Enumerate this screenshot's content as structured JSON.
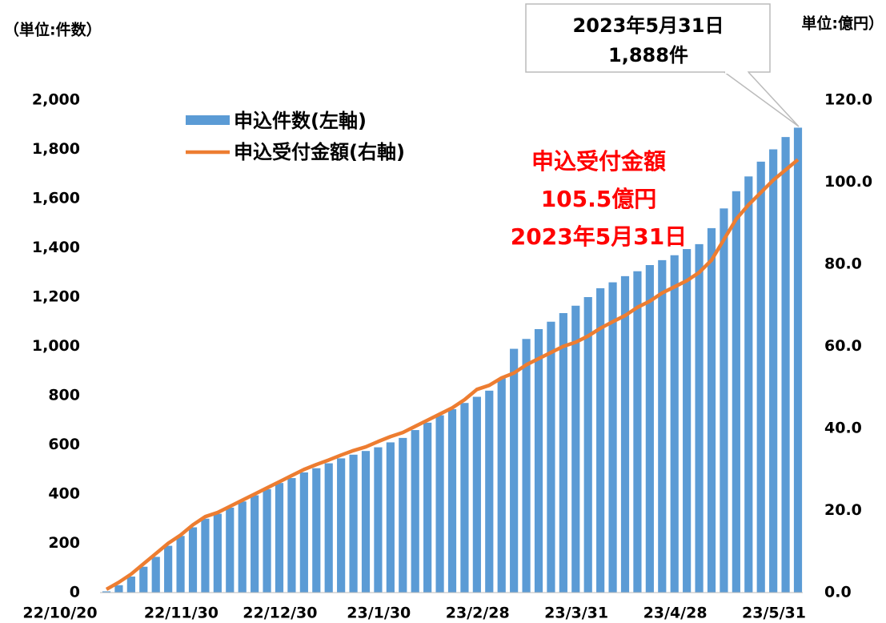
{
  "chart_data": {
    "type": "bar_line",
    "unit_left": "（単位:件数）",
    "unit_right": "単位:億円）",
    "categories": [
      "22/10/20",
      null,
      null,
      null,
      null,
      null,
      null,
      null,
      "22/11/30",
      null,
      null,
      null,
      null,
      null,
      null,
      null,
      "22/12/30",
      null,
      null,
      null,
      null,
      null,
      null,
      null,
      "23/1/30",
      null,
      null,
      null,
      null,
      null,
      null,
      null,
      "23/2/28",
      null,
      null,
      null,
      null,
      null,
      null,
      null,
      "23/3/31",
      null,
      null,
      null,
      null,
      null,
      null,
      null,
      "23/4/28",
      null,
      null,
      null,
      null,
      null,
      null,
      null,
      "23/5/31"
    ],
    "series": [
      {
        "name": "申込件数(左軸)",
        "color": "#5b9bd5",
        "axis": "y",
        "values": [
          5,
          30,
          65,
          105,
          145,
          190,
          230,
          265,
          300,
          320,
          345,
          370,
          395,
          420,
          445,
          465,
          488,
          505,
          525,
          545,
          560,
          575,
          590,
          610,
          628,
          660,
          690,
          720,
          745,
          770,
          795,
          820,
          870,
          990,
          1030,
          1070,
          1100,
          1135,
          1165,
          1200,
          1236,
          1260,
          1285,
          1305,
          1330,
          1350,
          1370,
          1395,
          1415,
          1480,
          1560,
          1630,
          1690,
          1750,
          1800,
          1850,
          1888
        ]
      },
      {
        "name": "申込受付金額(右軸)",
        "color": "#ed7d31",
        "axis": "y2",
        "values": [
          0.8,
          2.5,
          4.5,
          7,
          9.5,
          12,
          14,
          16.5,
          18.5,
          19.5,
          21,
          22.5,
          24,
          25.5,
          27,
          28.5,
          30,
          31.2,
          32.3,
          33.5,
          34.6,
          35.5,
          36.8,
          38,
          39,
          40.5,
          42,
          43.5,
          45,
          47,
          49.5,
          50.5,
          52.3,
          53.5,
          55.5,
          57,
          58.5,
          60,
          61,
          62.5,
          64.4,
          66,
          67.5,
          69.5,
          71,
          73,
          74.5,
          76,
          78,
          81,
          86,
          91,
          94.5,
          97.5,
          100.5,
          103,
          105.5
        ]
      }
    ],
    "ylim": [
      0,
      2000
    ],
    "yticks": [
      0,
      200,
      400,
      600,
      800,
      {
        "value": 1000,
        "label": "1,000"
      },
      {
        "value": 1200,
        "label": "1,200"
      },
      {
        "value": 1400,
        "label": "1,400"
      },
      {
        "value": 1600,
        "label": "1,600"
      },
      {
        "value": 1800,
        "label": "1,800"
      },
      {
        "value": 2000,
        "label": "2,000"
      }
    ],
    "y2lim": [
      0,
      120
    ],
    "y2ticks": [
      {
        "value": 0,
        "label": "0.0"
      },
      {
        "value": 20,
        "label": "20.0"
      },
      {
        "value": 40,
        "label": "40.0"
      },
      {
        "value": 60,
        "label": "60.0"
      },
      {
        "value": 80,
        "label": "80.0"
      },
      {
        "value": 100,
        "label": "100.0"
      },
      {
        "value": 120,
        "label": "120.0"
      }
    ],
    "annotations": [
      "申込受付金額",
      "105.5億円",
      "2023年5月31日"
    ],
    "callout": [
      "2023年5月31日",
      "1,888件"
    ],
    "legend": "upper left"
  }
}
